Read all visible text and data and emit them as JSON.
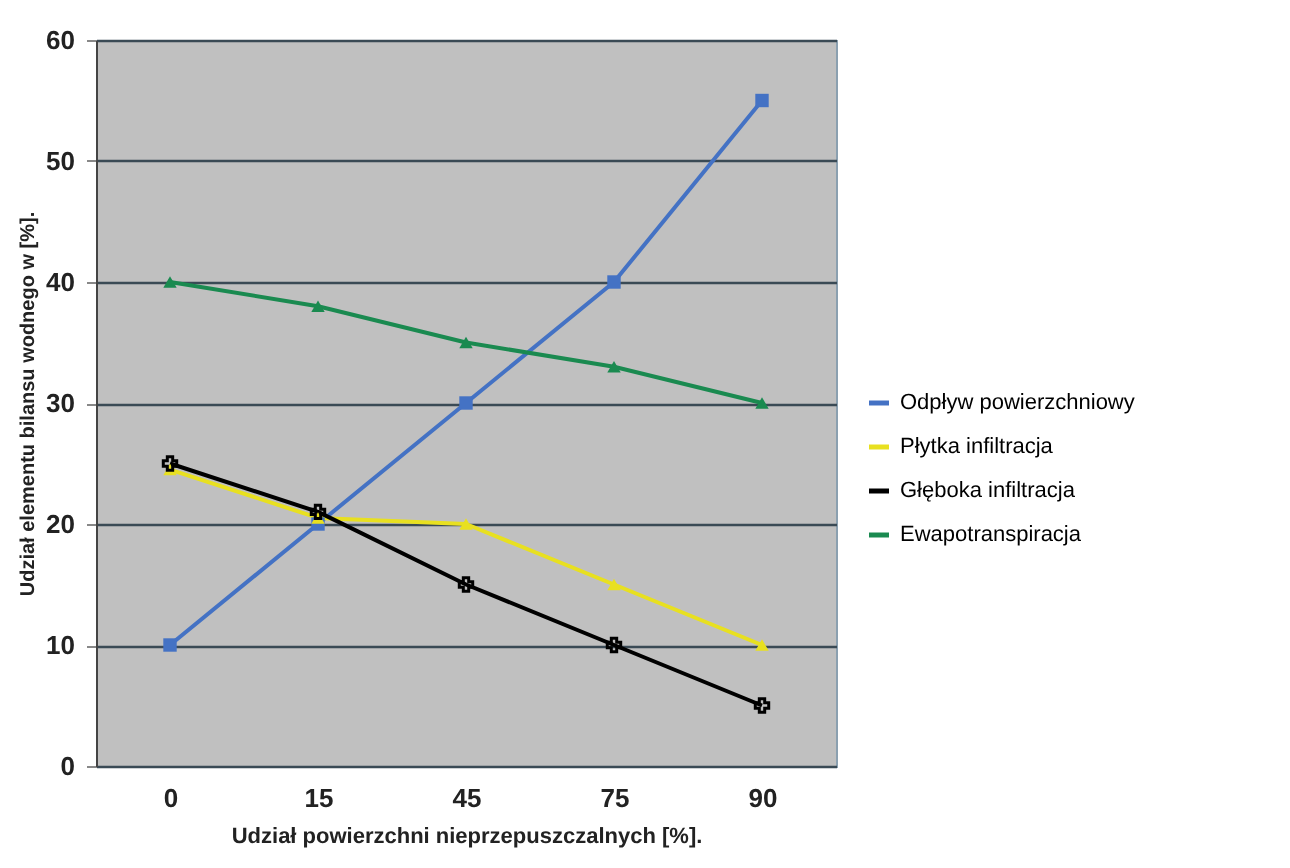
{
  "chart_data": {
    "type": "line",
    "xlabel": "Udział powierzchni nieprzepuszczalnych [%].",
    "ylabel": "Udział elementu bilansu wodnego w [%].",
    "categories": [
      "0",
      "15",
      "45",
      "75",
      "90"
    ],
    "ylim": [
      0,
      60
    ],
    "yticks": [
      0,
      10,
      20,
      30,
      40,
      50,
      60
    ],
    "grid": "y",
    "legend": "right",
    "series": [
      {
        "name": "Odpływ powierzchniowy",
        "color": "#4472c4",
        "marker": "square",
        "values": [
          10,
          20,
          30,
          40,
          55
        ]
      },
      {
        "name": "Płytka infiltracja",
        "color": "#e8e020",
        "marker": "triangle",
        "values": [
          24.5,
          20.5,
          20,
          15,
          10
        ]
      },
      {
        "name": "Głęboka infiltracja",
        "color": "#000000",
        "marker": "cross",
        "values": [
          25,
          21,
          15,
          10,
          5
        ]
      },
      {
        "name": "Ewapotranspiracja",
        "color": "#1a8a50",
        "marker": "triangle",
        "values": [
          40,
          38,
          35,
          33,
          30
        ]
      }
    ]
  }
}
